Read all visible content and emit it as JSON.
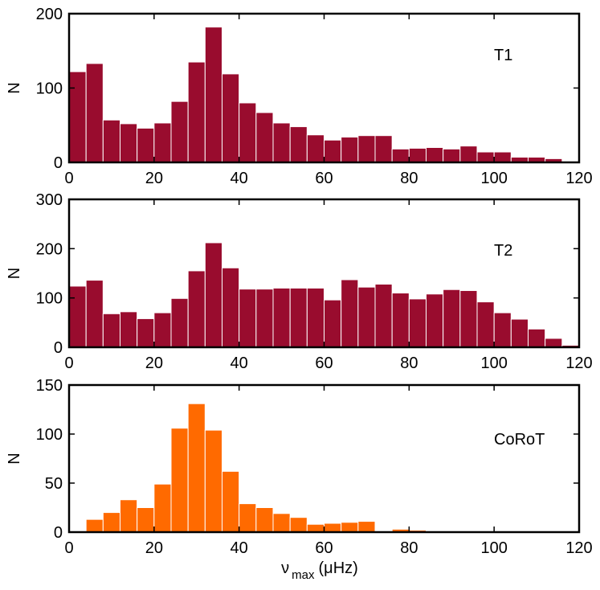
{
  "chart_data": [
    {
      "type": "bar",
      "title": "",
      "label": "T1",
      "color": "#990c2e",
      "xlabel": "",
      "ylabel": "N",
      "xlim": [
        0,
        120
      ],
      "ylim": [
        0,
        200
      ],
      "bin_width": 4,
      "xticks": [
        "0",
        "20",
        "40",
        "60",
        "80",
        "100",
        "120"
      ],
      "yticks": [
        "0",
        "100",
        "200"
      ],
      "bins": [
        0,
        4,
        8,
        12,
        16,
        20,
        24,
        28,
        32,
        36,
        40,
        44,
        48,
        52,
        56,
        60,
        64,
        68,
        72,
        76,
        80,
        84,
        88,
        92,
        96,
        100,
        104,
        108,
        112,
        116
      ],
      "values": [
        122,
        133,
        57,
        52,
        46,
        53,
        82,
        135,
        182,
        119,
        80,
        67,
        53,
        48,
        37,
        30,
        34,
        36,
        36,
        18,
        19,
        20,
        18,
        22,
        14,
        14,
        7,
        7,
        5,
        0
      ]
    },
    {
      "type": "bar",
      "title": "",
      "label": "T2",
      "color": "#990c2e",
      "xlabel": "",
      "ylabel": "N",
      "xlim": [
        0,
        120
      ],
      "ylim": [
        0,
        300
      ],
      "bin_width": 4,
      "xticks": [
        "0",
        "20",
        "40",
        "60",
        "80",
        "100",
        "120"
      ],
      "yticks": [
        "0",
        "100",
        "200",
        "300"
      ],
      "bins": [
        0,
        4,
        8,
        12,
        16,
        20,
        24,
        28,
        32,
        36,
        40,
        44,
        48,
        52,
        56,
        60,
        64,
        68,
        72,
        76,
        80,
        84,
        88,
        92,
        96,
        100,
        104,
        108,
        112,
        116
      ],
      "values": [
        124,
        136,
        68,
        72,
        58,
        70,
        99,
        155,
        212,
        161,
        118,
        118,
        120,
        120,
        120,
        96,
        137,
        122,
        128,
        110,
        98,
        108,
        117,
        115,
        92,
        70,
        57,
        37,
        18,
        4
      ]
    },
    {
      "type": "bar",
      "title": "",
      "label": "CoRoT",
      "color": "#ff6a00",
      "xlabel": "ν max (μHz)",
      "ylabel": "N",
      "xlim": [
        0,
        120
      ],
      "ylim": [
        0,
        150
      ],
      "bin_width": 4,
      "xticks": [
        "0",
        "20",
        "40",
        "60",
        "80",
        "100",
        "120"
      ],
      "yticks": [
        "0",
        "50",
        "100",
        "150"
      ],
      "bins": [
        0,
        4,
        8,
        12,
        16,
        20,
        24,
        28,
        32,
        36,
        40,
        44,
        48,
        52,
        56,
        60,
        64,
        68,
        72,
        76,
        80,
        84,
        88,
        92,
        96,
        100,
        104,
        108,
        112,
        116
      ],
      "values": [
        0,
        13,
        20,
        33,
        25,
        49,
        106,
        131,
        104,
        62,
        29,
        25,
        19,
        15,
        8,
        9,
        10,
        11,
        1,
        3,
        2,
        1,
        0,
        0,
        1,
        0,
        0,
        0,
        0,
        0
      ]
    }
  ],
  "xlabel_parts": {
    "symbol": "ν",
    "subscript": "max",
    "unit": "(μHz)"
  }
}
